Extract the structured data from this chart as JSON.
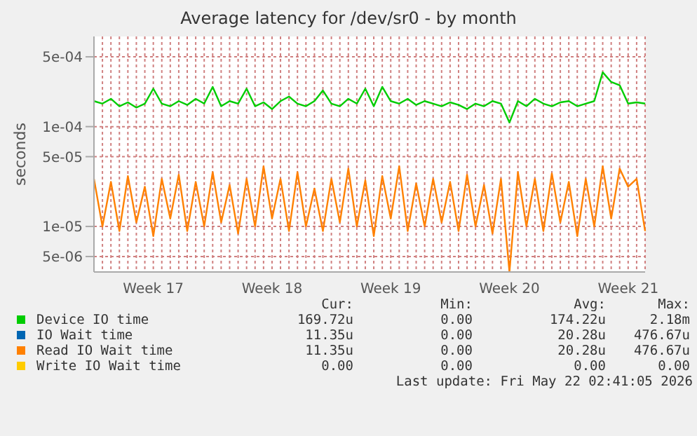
{
  "chart_data": {
    "type": "line",
    "title": "Average latency for /dev/sr0 - by month",
    "ylabel": "seconds",
    "log": "y",
    "grid": true,
    "legend": "bottom",
    "marker": "none",
    "line_style": "solid",
    "categories": [
      null,
      null,
      null,
      null,
      null,
      null,
      null,
      "Week 17",
      null,
      null,
      null,
      null,
      null,
      null,
      null,
      null,
      null,
      null,
      null,
      null,
      null,
      "Week 18",
      null,
      null,
      null,
      null,
      null,
      null,
      null,
      null,
      null,
      null,
      null,
      null,
      null,
      "Week 19",
      null,
      null,
      null,
      null,
      null,
      null,
      null,
      null,
      null,
      null,
      null,
      null,
      null,
      "Week 20",
      null,
      null,
      null,
      null,
      null,
      null,
      null,
      null,
      null,
      null,
      null,
      null,
      null,
      "Week 21",
      null,
      null
    ],
    "ylim": [
      3.5e-06,
      0.0008
    ],
    "yticks": [
      {
        "value": 5e-06,
        "label": "5e-06"
      },
      {
        "value": 1e-05,
        "label": "1e-05"
      },
      {
        "value": 5e-05,
        "label": "5e-05"
      },
      {
        "value": 0.0001,
        "label": "1e-04"
      },
      {
        "value": 0.0005,
        "label": "5e-04"
      }
    ],
    "series": [
      {
        "name": "Device IO time",
        "color": "#00cc00",
        "values": [
          0.00018,
          0.00017,
          0.00019,
          0.00016,
          0.000175,
          0.000155,
          0.00017,
          0.00024,
          0.00017,
          0.00016,
          0.00018,
          0.000165,
          0.00019,
          0.00017,
          0.00025,
          0.00016,
          0.00018,
          0.00017,
          0.00024,
          0.00016,
          0.000175,
          0.00015,
          0.00018,
          0.0002,
          0.00017,
          0.00016,
          0.00018,
          0.00023,
          0.00017,
          0.00016,
          0.00019,
          0.00017,
          0.00024,
          0.00016,
          0.00025,
          0.00018,
          0.00017,
          0.00019,
          0.000165,
          0.00018,
          0.00017,
          0.00016,
          0.000175,
          0.000165,
          0.00015,
          0.00017,
          0.00016,
          0.00018,
          0.00017,
          0.00011,
          0.00018,
          0.00016,
          0.00019,
          0.00017,
          0.00016,
          0.000175,
          0.00018,
          0.00016,
          0.00017,
          0.00018,
          0.00035,
          0.00028,
          0.00026,
          0.00017,
          0.000175,
          0.00017
        ]
      },
      {
        "name": "IO Wait time",
        "color": "#0066b3",
        "values": [
          null,
          null,
          null,
          null,
          null,
          null,
          null,
          null,
          null,
          null,
          null,
          null,
          null,
          null,
          null,
          null,
          null,
          null,
          null,
          null,
          null,
          null,
          null,
          null,
          null,
          null,
          null,
          null,
          null,
          null,
          null,
          null,
          null,
          null,
          null,
          null,
          null,
          null,
          null,
          null,
          null,
          null,
          null,
          null,
          null,
          null,
          null,
          null,
          null,
          null,
          null,
          null,
          null,
          null,
          null,
          null,
          null,
          null,
          null,
          null,
          null,
          null,
          null,
          null,
          null,
          null
        ]
      },
      {
        "name": "Read IO Wait time",
        "color": "#ff8000",
        "values": [
          3e-05,
          1e-05,
          2.8e-05,
          9e-06,
          3.2e-05,
          1.1e-05,
          2.5e-05,
          8e-06,
          3e-05,
          1.2e-05,
          3.3e-05,
          9e-06,
          2.8e-05,
          1e-05,
          3.5e-05,
          1.1e-05,
          2.6e-05,
          8.5e-06,
          3e-05,
          1e-05,
          4e-05,
          1.2e-05,
          3e-05,
          9e-06,
          3.5e-05,
          1e-05,
          2.4e-05,
          9e-06,
          3e-05,
          1.1e-05,
          3.8e-05,
          1e-05,
          2.9e-05,
          8e-06,
          3.2e-05,
          1.2e-05,
          4e-05,
          9e-06,
          2.7e-05,
          1e-05,
          3e-05,
          1.1e-05,
          2.8e-05,
          9e-06,
          3.3e-05,
          1e-05,
          2.6e-05,
          8.5e-06,
          3e-05,
          3.5e-06,
          3.5e-05,
          1e-05,
          3e-05,
          9e-06,
          3.4e-05,
          1.1e-05,
          2.8e-05,
          8e-06,
          3e-05,
          1e-05,
          4e-05,
          1.2e-05,
          3.8e-05,
          2.5e-05,
          3e-05,
          9e-06
        ]
      },
      {
        "name": "Write IO Wait time",
        "color": "#ffcc00",
        "values": [
          null,
          null,
          null,
          null,
          null,
          null,
          null,
          null,
          null,
          null,
          null,
          null,
          null,
          null,
          null,
          null,
          null,
          null,
          null,
          null,
          null,
          null,
          null,
          null,
          null,
          null,
          null,
          null,
          null,
          null,
          null,
          null,
          null,
          null,
          null,
          null,
          null,
          null,
          null,
          null,
          null,
          null,
          null,
          null,
          null,
          null,
          null,
          null,
          null,
          null,
          null,
          null,
          null,
          null,
          null,
          null,
          null,
          null,
          null,
          null,
          null,
          null,
          null,
          null,
          null,
          null
        ]
      }
    ],
    "annotations": [
      "Cur:",
      "Min:",
      "Avg:",
      "Max:",
      "169.72u",
      "0.00",
      "174.22u",
      "2.18m",
      "11.35u",
      "0.00",
      "20.28u",
      "476.67u",
      "11.35u",
      "0.00",
      "20.28u",
      "476.67u",
      "0.00",
      "0.00",
      "0.00",
      "0.00",
      "Last update: Fri May 22 02:41:05 2026"
    ]
  }
}
